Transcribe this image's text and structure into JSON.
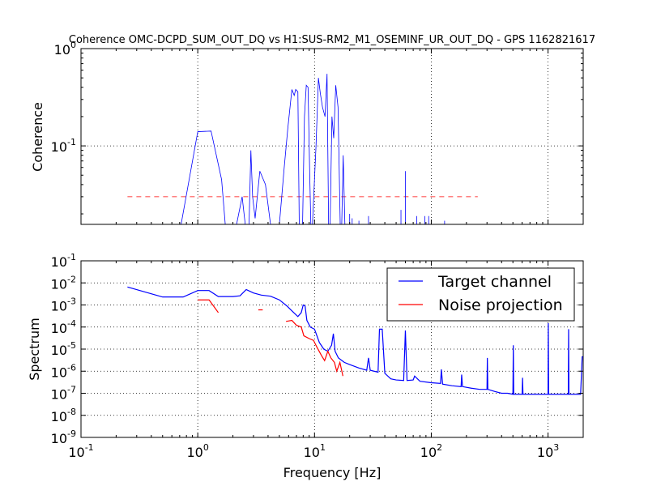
{
  "chart_data": [
    {
      "type": "line",
      "title": "Coherence OMC-DCPD_SUM_OUT_DQ vs H1:SUS-RM2_M1_OSEMINF_UR_OUT_DQ - GPS 1162821617",
      "xlabel": "",
      "ylabel": "Coherence",
      "xscale": "log",
      "yscale": "log",
      "xlim": [
        0.1,
        2000
      ],
      "ylim": [
        0.0156,
        1
      ],
      "grid": true,
      "x_ticks": [
        0.1,
        1,
        10,
        100,
        1000
      ],
      "y_tick_labels": [
        {
          "base": "10",
          "exp": "0",
          "value": 1
        },
        {
          "base": "10",
          "exp": "-1",
          "value": 0.1
        }
      ],
      "colors": {
        "coherence": "#0000ff",
        "threshold": "#ff0000"
      },
      "threshold": {
        "value": 0.03,
        "x_range": [
          0.25,
          250
        ]
      },
      "series": [
        {
          "name": "",
          "points": [
            [
              0.72,
              0.0156
            ],
            [
              1.0,
              0.14
            ],
            [
              1.3,
              0.142
            ],
            [
              1.6,
              0.045
            ],
            [
              1.72,
              0.0156
            ],
            [
              2.15,
              0.0156
            ],
            [
              2.4,
              0.03
            ],
            [
              2.55,
              0.0156
            ],
            [
              2.75,
              0.0156
            ],
            [
              2.85,
              0.09
            ],
            [
              2.95,
              0.03
            ],
            [
              3.1,
              0.018
            ],
            [
              3.4,
              0.055
            ],
            [
              3.8,
              0.04
            ],
            [
              4.2,
              0.0156
            ],
            [
              5.0,
              0.0156
            ],
            [
              5.5,
              0.06
            ],
            [
              5.9,
              0.15
            ],
            [
              6.4,
              0.38
            ],
            [
              6.7,
              0.33
            ],
            [
              6.9,
              0.38
            ],
            [
              7.2,
              0.36
            ],
            [
              7.4,
              0.0156
            ],
            [
              7.9,
              0.0156
            ],
            [
              8.2,
              0.2
            ],
            [
              8.5,
              0.42
            ],
            [
              8.8,
              0.4
            ],
            [
              9.1,
              0.05
            ],
            [
              9.3,
              0.0156
            ],
            [
              9.6,
              0.0156
            ],
            [
              10.3,
              0.1
            ],
            [
              10.8,
              0.5
            ],
            [
              11.2,
              0.35
            ],
            [
              11.7,
              0.25
            ],
            [
              12.3,
              0.2
            ],
            [
              12.8,
              0.55
            ],
            [
              13.2,
              0.0156
            ],
            [
              13.6,
              0.0156
            ],
            [
              14.1,
              0.2
            ],
            [
              14.6,
              0.12
            ],
            [
              15.2,
              0.42
            ],
            [
              15.9,
              0.25
            ],
            [
              16.6,
              0.0156
            ],
            [
              17.1,
              0.0156
            ],
            [
              17.6,
              0.08
            ],
            [
              18.2,
              0.0156
            ]
          ]
        }
      ],
      "spikes": [
        [
          20,
          0.02
        ],
        [
          21,
          0.018
        ],
        [
          24,
          0.017
        ],
        [
          29,
          0.019
        ],
        [
          55,
          0.022
        ],
        [
          60,
          0.055
        ],
        [
          75,
          0.019
        ],
        [
          88,
          0.019
        ],
        [
          95,
          0.019
        ],
        [
          130,
          0.017
        ]
      ]
    },
    {
      "type": "line",
      "title": "",
      "xlabel": "Frequency [Hz]",
      "ylabel": "Spectrum",
      "xscale": "log",
      "yscale": "log",
      "xlim": [
        0.1,
        2000
      ],
      "ylim": [
        1e-09,
        0.1
      ],
      "grid": true,
      "x_tick_labels": [
        {
          "base": "10",
          "exp": "-1",
          "value": 0.1
        },
        {
          "base": "10",
          "exp": "0",
          "value": 1
        },
        {
          "base": "10",
          "exp": "1",
          "value": 10
        },
        {
          "base": "10",
          "exp": "2",
          "value": 100
        },
        {
          "base": "10",
          "exp": "3",
          "value": 1000
        }
      ],
      "y_tick_labels": [
        {
          "base": "10",
          "exp": "-1",
          "value": 0.1
        },
        {
          "base": "10",
          "exp": "-2",
          "value": 0.01
        },
        {
          "base": "10",
          "exp": "-3",
          "value": 0.001
        },
        {
          "base": "10",
          "exp": "-4",
          "value": 0.0001
        },
        {
          "base": "10",
          "exp": "-5",
          "value": 1e-05
        },
        {
          "base": "10",
          "exp": "-6",
          "value": 1e-06
        },
        {
          "base": "10",
          "exp": "-7",
          "value": 1e-07
        },
        {
          "base": "10",
          "exp": "-8",
          "value": 1e-08
        },
        {
          "base": "10",
          "exp": "-9",
          "value": 1e-09
        }
      ],
      "legend": {
        "placement": "top-right"
      },
      "series": [
        {
          "name": "Target channel",
          "color": "#0000ff",
          "points": [
            [
              0.25,
              0.0065
            ],
            [
              0.5,
              0.0023
            ],
            [
              0.75,
              0.0023
            ],
            [
              1.0,
              0.0045
            ],
            [
              1.25,
              0.0045
            ],
            [
              1.5,
              0.0024
            ],
            [
              2.0,
              0.0024
            ],
            [
              2.3,
              0.0026
            ],
            [
              2.6,
              0.005
            ],
            [
              3.0,
              0.0035
            ],
            [
              3.5,
              0.0028
            ],
            [
              4.2,
              0.0025
            ],
            [
              5.0,
              0.0017
            ],
            [
              5.8,
              0.0009
            ],
            [
              6.5,
              0.0005
            ],
            [
              7.2,
              0.0003
            ],
            [
              7.7,
              0.00045
            ],
            [
              8.0,
              0.001
            ],
            [
              8.3,
              0.0009
            ],
            [
              8.6,
              0.0002
            ],
            [
              9.2,
              0.0001
            ],
            [
              10.0,
              8e-05
            ],
            [
              11.0,
              2e-05
            ],
            [
              12.0,
              1e-05
            ],
            [
              13.0,
              8e-06
            ],
            [
              14.0,
              1.5e-05
            ],
            [
              14.5,
              5e-05
            ],
            [
              15.0,
              8e-06
            ],
            [
              16.0,
              4e-06
            ],
            [
              18.0,
              2.5e-06
            ],
            [
              20.0,
              2e-06
            ],
            [
              24.0,
              1.4e-06
            ],
            [
              28.0,
              1.1e-06
            ],
            [
              29.0,
              4e-06
            ],
            [
              30.0,
              1.1e-06
            ],
            [
              35.0,
              9e-07
            ],
            [
              36.0,
              8e-05
            ],
            [
              38.0,
              8e-05
            ],
            [
              40.0,
              8e-07
            ],
            [
              45.0,
              4.5e-07
            ],
            [
              50.0,
              4e-07
            ],
            [
              58.0,
              3.8e-07
            ],
            [
              60.0,
              7e-05
            ],
            [
              62.0,
              3.8e-07
            ],
            [
              70.0,
              4e-07
            ],
            [
              72.0,
              6e-07
            ],
            [
              80.0,
              3.5e-07
            ],
            [
              100.0,
              3e-07
            ],
            [
              120.0,
              2.8e-07
            ],
            [
              122.0,
              1.2e-06
            ],
            [
              125.0,
              2.6e-07
            ],
            [
              150.0,
              2.2e-07
            ],
            [
              180.0,
              2e-07
            ],
            [
              182.0,
              7e-07
            ],
            [
              185.0,
              2e-07
            ],
            [
              220.0,
              1.7e-07
            ],
            [
              260.0,
              1.5e-07
            ],
            [
              300.0,
              1.5e-07
            ],
            [
              302.0,
              4e-06
            ],
            [
              305.0,
              1.5e-07
            ],
            [
              350.0,
              1.2e-07
            ],
            [
              400.0,
              1e-07
            ],
            [
              450.0,
              1e-07
            ],
            [
              500.0,
              9e-08
            ],
            [
              504.0,
              1.5e-05
            ],
            [
              508.0,
              9e-08
            ],
            [
              600.0,
              9e-08
            ],
            [
              605.0,
              5e-07
            ],
            [
              610.0,
              9e-08
            ],
            [
              700.0,
              9e-08
            ],
            [
              800.0,
              9e-08
            ],
            [
              900.0,
              9e-08
            ],
            [
              1000.0,
              9e-08
            ],
            [
              1005.0,
              0.00015
            ],
            [
              1012.0,
              9e-08
            ],
            [
              1100.0,
              9e-08
            ],
            [
              1200.0,
              9e-08
            ],
            [
              1400.0,
              9e-08
            ],
            [
              1490.0,
              9e-08
            ],
            [
              1500.0,
              8e-05
            ],
            [
              1510.0,
              9e-08
            ],
            [
              1900.0,
              9e-08
            ],
            [
              1960.0,
              4.5e-06
            ],
            [
              2000.0,
              4.5e-06
            ]
          ]
        },
        {
          "name": "Noise projection",
          "color": "#ff0000",
          "segments": [
            [
              [
                1.0,
                0.0017
              ],
              [
                1.25,
                0.0017
              ],
              [
                1.5,
                0.00045
              ]
            ],
            [
              [
                3.3,
                0.0006
              ],
              [
                3.6,
                0.0006
              ]
            ],
            [
              [
                5.7,
                0.00018
              ],
              [
                6.4,
                0.0002
              ],
              [
                7.0,
                0.00012
              ],
              [
                7.7,
                0.0001
              ],
              [
                8.1,
                4e-05
              ],
              [
                9.0,
                3e-05
              ],
              [
                9.8,
                2.5e-05
              ],
              [
                10.5,
                1.2e-05
              ],
              [
                11.5,
                5e-06
              ],
              [
                12.2,
                3e-06
              ],
              [
                13.0,
                8e-06
              ],
              [
                13.8,
                4e-06
              ],
              [
                14.8,
                2.5e-06
              ],
              [
                15.5,
                1e-06
              ],
              [
                16.5,
                2.5e-06
              ],
              [
                17.5,
                6e-07
              ]
            ]
          ]
        }
      ]
    }
  ]
}
